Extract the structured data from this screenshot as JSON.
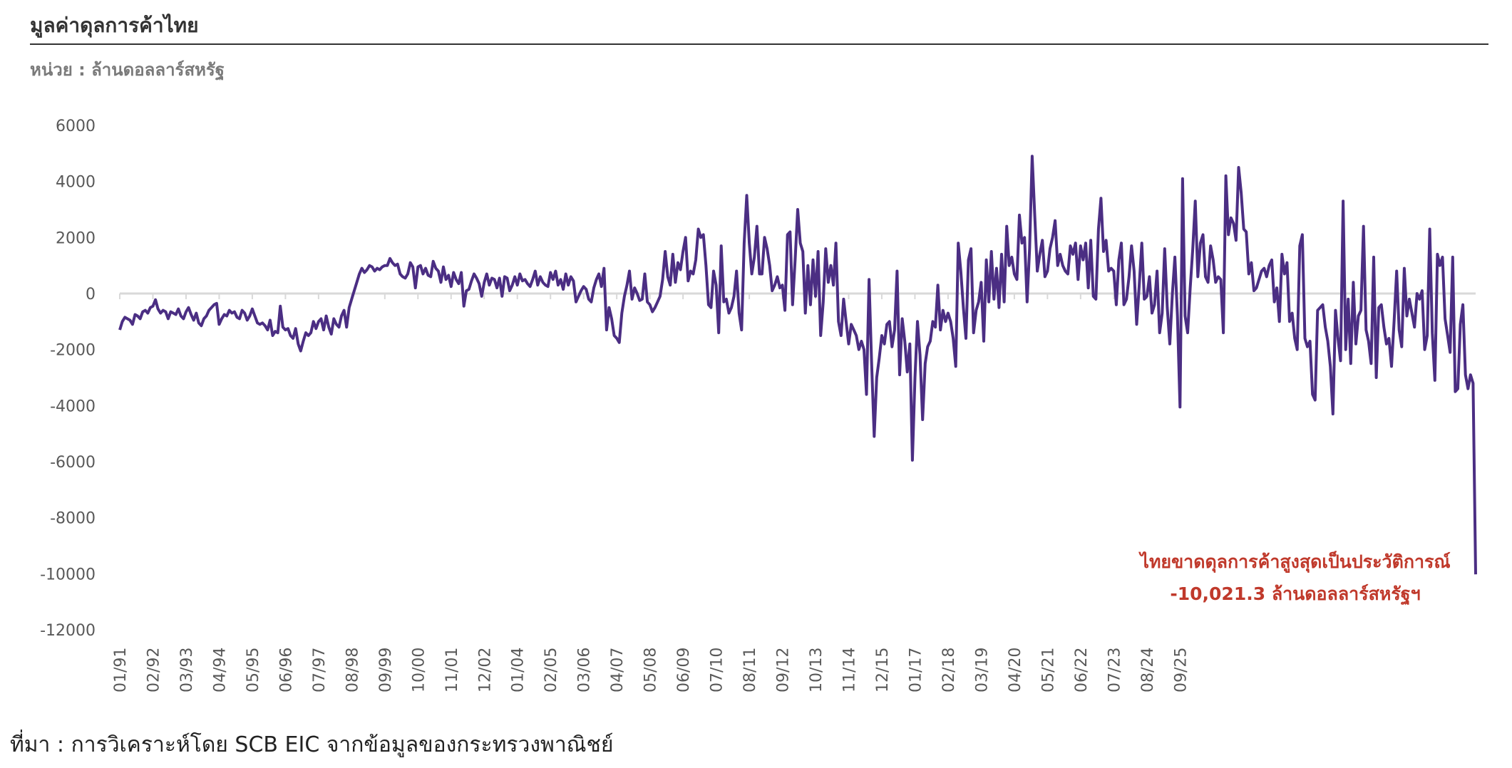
{
  "header": {
    "title": "มูลค่าดุลการค้าไทย",
    "unit": "หน่วย : ล้านดอลลาร์สหรัฐ"
  },
  "footer": {
    "source": "ที่มา : การวิเคราะห์โดย SCB EIC จากข้อมูลของกระทรวงพาณิชย์"
  },
  "colors": {
    "line": "#4b2e83",
    "zero_line": "#d9d9d9",
    "annotation": "#c0392b"
  },
  "chart_data": {
    "type": "line",
    "title": "มูลค่าดุลการค้าไทย",
    "ylabel": "หน่วย : ล้านดอลลาร์สหรัฐ",
    "ylim": [
      -12000,
      6000
    ],
    "yticks": [
      6000,
      4000,
      2000,
      0,
      -2000,
      -4000,
      -6000,
      -8000,
      -10000,
      -12000
    ],
    "ytick_labels": [
      "6000",
      "4000",
      "2000",
      "0",
      "-2000",
      "-4000",
      "-6000",
      "-8000",
      "-10000",
      "-12000"
    ],
    "xticks": [
      "01/91",
      "02/92",
      "03/93",
      "04/94",
      "05/95",
      "06/96",
      "07/97",
      "08/98",
      "09/99",
      "10/00",
      "11/01",
      "12/02",
      "01/04",
      "02/05",
      "03/06",
      "04/07",
      "05/08",
      "06/09",
      "07/10",
      "08/11",
      "09/12",
      "10/13",
      "11/14",
      "12/15",
      "01/17",
      "02/18",
      "03/19",
      "04/20",
      "05/21",
      "06/22",
      "07/23",
      "08/24",
      "09/25"
    ],
    "grid": false,
    "legend": "none",
    "series": [
      {
        "x_start": "1991-01",
        "frequency": "monthly",
        "values": [
          -1300,
          -1000,
          -850,
          -900,
          -950,
          -1100,
          -750,
          -800,
          -900,
          -650,
          -600,
          -700,
          -500,
          -450,
          -220,
          -550,
          -700,
          -600,
          -650,
          -900,
          -650,
          -700,
          -750,
          -550,
          -800,
          -900,
          -650,
          -500,
          -750,
          -950,
          -700,
          -1050,
          -1150,
          -900,
          -800,
          -600,
          -500,
          -400,
          -350,
          -1100,
          -900,
          -750,
          -800,
          -600,
          -700,
          -650,
          -850,
          -900,
          -600,
          -700,
          -950,
          -800,
          -550,
          -800,
          -1050,
          -1100,
          -1050,
          -1150,
          -1300,
          -950,
          -1500,
          -1350,
          -1400,
          -450,
          -1200,
          -1300,
          -1250,
          -1500,
          -1600,
          -1250,
          -1800,
          -2050,
          -1700,
          -1400,
          -1500,
          -1400,
          -1000,
          -1250,
          -1000,
          -900,
          -1300,
          -800,
          -1200,
          -1450,
          -900,
          -1100,
          -1200,
          -800,
          -600,
          -1200,
          -500,
          -200,
          100,
          400,
          700,
          900,
          750,
          850,
          1000,
          950,
          800,
          900,
          850,
          950,
          1000,
          1000,
          1250,
          1100,
          1000,
          1050,
          700,
          600,
          550,
          700,
          1100,
          950,
          200,
          950,
          1000,
          700,
          900,
          650,
          600,
          1150,
          900,
          800,
          400,
          950,
          500,
          650,
          250,
          750,
          500,
          350,
          750,
          -450,
          100,
          150,
          450,
          700,
          550,
          350,
          -100,
          400,
          700,
          300,
          550,
          500,
          200,
          550,
          -100,
          600,
          550,
          100,
          300,
          600,
          300,
          700,
          450,
          500,
          350,
          250,
          500,
          800,
          300,
          600,
          400,
          300,
          250,
          750,
          500,
          800,
          300,
          500,
          150,
          700,
          300,
          600,
          450,
          -300,
          -100,
          100,
          250,
          150,
          -200,
          -300,
          200,
          500,
          700,
          250,
          900,
          -1300,
          -500,
          -900,
          -1500,
          -1600,
          -1750,
          -700,
          -100,
          300,
          800,
          -200,
          200,
          0,
          -250,
          -200,
          700,
          -300,
          -400,
          -650,
          -500,
          -300,
          -100,
          500,
          1500,
          600,
          300,
          1400,
          400,
          1100,
          850,
          1500,
          2000,
          450,
          800,
          700,
          1200,
          2300,
          2000,
          2100,
          1000,
          -400,
          -500,
          800,
          300,
          -1400,
          1700,
          -300,
          -200,
          -700,
          -500,
          -100,
          800,
          -700,
          -1300,
          1800,
          3500,
          1800,
          700,
          1300,
          2400,
          700,
          700,
          2000,
          1600,
          1000,
          100,
          300,
          600,
          200,
          300,
          -600,
          2100,
          2200,
          -400,
          1200,
          3000,
          1800,
          1500,
          -700,
          1000,
          -400,
          1200,
          -100,
          1500,
          -1500,
          -300,
          1600,
          400,
          1000,
          300,
          1800,
          -1000,
          -1500,
          -200,
          -1000,
          -1800,
          -1100,
          -1300,
          -1500,
          -2000,
          -1700,
          -2000,
          -3600,
          500,
          -2500,
          -5100,
          -3000,
          -2300,
          -1500,
          -1800,
          -1100,
          -1000,
          -1900,
          -1300,
          800,
          -2900,
          -900,
          -1700,
          -2800,
          -1800,
          -5950,
          -3000,
          -1000,
          -2200,
          -4500,
          -2500,
          -1900,
          -1700,
          -1000,
          -1200,
          300,
          -1300,
          -600,
          -1000,
          -700,
          -1000,
          -1600,
          -2600,
          1800,
          800,
          -500,
          -1600,
          1200,
          1600,
          -1400,
          -600,
          -300,
          400,
          -1700,
          1200,
          -300,
          1500,
          -200,
          900,
          -500,
          1400,
          -300,
          2400,
          1000,
          1300,
          700,
          500,
          2800,
          1800,
          2000,
          -300,
          1600,
          4900,
          2800,
          800,
          1400,
          1900,
          600,
          800,
          1600,
          2000,
          2600,
          1000,
          1400,
          1000,
          800,
          700,
          1700,
          1400,
          1800,
          500,
          1700,
          1200,
          1800,
          200,
          1900,
          -100,
          -200,
          2300,
          3400,
          1500,
          1900,
          800,
          900,
          800,
          -400,
          1200,
          1800,
          -400,
          -200,
          600,
          1700,
          800,
          -1100,
          300,
          1800,
          -200,
          -100,
          600,
          -700,
          -400,
          800,
          -1400,
          -700,
          1600,
          -500,
          -1800,
          0,
          1300,
          -800,
          -4050,
          4100,
          -800,
          -1400,
          200,
          1600,
          3300,
          600,
          1800,
          2100,
          600,
          400,
          1700,
          1200,
          400,
          600,
          500,
          -1400,
          4200,
          2100,
          2700,
          2500,
          1900,
          4500,
          3600,
          2300,
          2200,
          700,
          1100,
          100,
          200,
          500,
          800,
          900,
          600,
          1000,
          1200,
          -300,
          200,
          -1000,
          1400,
          700,
          1100,
          -1000,
          -700,
          -1600,
          -2000,
          1700,
          2100,
          -1600,
          -1900,
          -1700,
          -3600,
          -3800,
          -600,
          -500,
          -400,
          -1200,
          -1700,
          -2600,
          -4300,
          -600,
          -1600,
          -2400,
          3300,
          -2000,
          -200,
          -2500,
          400,
          -1800,
          -800,
          -600,
          2400,
          -1300,
          -1700,
          -2500,
          1300,
          -3000,
          -500,
          -400,
          -1200,
          -1800,
          -1600,
          -2600,
          -1000,
          800,
          -1300,
          -1900,
          900,
          -800,
          -200,
          -700,
          -1200,
          0,
          -200,
          100,
          -2000,
          -1500,
          2300,
          -1400,
          -3100,
          1400,
          1000,
          1300,
          -900,
          -1500,
          -2100,
          1300,
          -3500,
          -3400,
          -1100,
          -400,
          -2900,
          -3400,
          -2900,
          -3200,
          -10021.3
        ]
      }
    ],
    "annotations": [
      {
        "text": "ไทยขาดดุลการค้าสูงสุดเป็นประวัติการณ์"
      },
      {
        "text": "-10,021.3 ล้านดอลลาร์สหรัฐฯ"
      }
    ]
  }
}
